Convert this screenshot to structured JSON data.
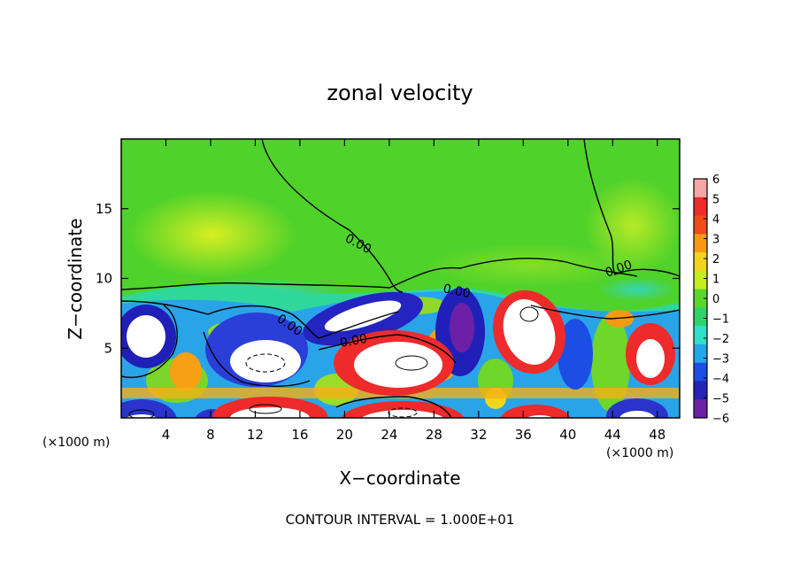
{
  "chart_data": {
    "type": "heatmap",
    "title": "zonal velocity",
    "xlabel": "X−coordinate",
    "ylabel": "Z−coordinate",
    "x_unit_left": "(×1000 m)",
    "x_unit_right": "(×1000 m)",
    "footer": "CONTOUR INTERVAL = 1.000E+01",
    "xlim": [
      0,
      50
    ],
    "ylim": [
      0,
      20
    ],
    "xticks": [
      4,
      8,
      12,
      16,
      20,
      24,
      28,
      32,
      36,
      40,
      44,
      48
    ],
    "yticks": [
      5,
      10,
      15
    ],
    "contour_labels": [
      "0.00",
      "0.00",
      "0.00",
      "0.00",
      "0.00"
    ],
    "colorbar": {
      "ticks": [
        6,
        5,
        4,
        3,
        2,
        1,
        0,
        -1,
        -2,
        -3,
        -4,
        -5,
        -6
      ],
      "tick_labels": [
        "6",
        "5",
        "4",
        "3",
        "2",
        "1",
        "0",
        "−1",
        "−2",
        "−3",
        "−4",
        "−5",
        "−6"
      ],
      "colors": [
        "#f4a6a6",
        "#ee2a2a",
        "#f24a18",
        "#f79a12",
        "#f2d51a",
        "#c6ec1c",
        "#5ad829",
        "#2dd46a",
        "#2ee0c8",
        "#24a6ec",
        "#1c4ee6",
        "#2424b8",
        "#6c20a8"
      ]
    }
  }
}
